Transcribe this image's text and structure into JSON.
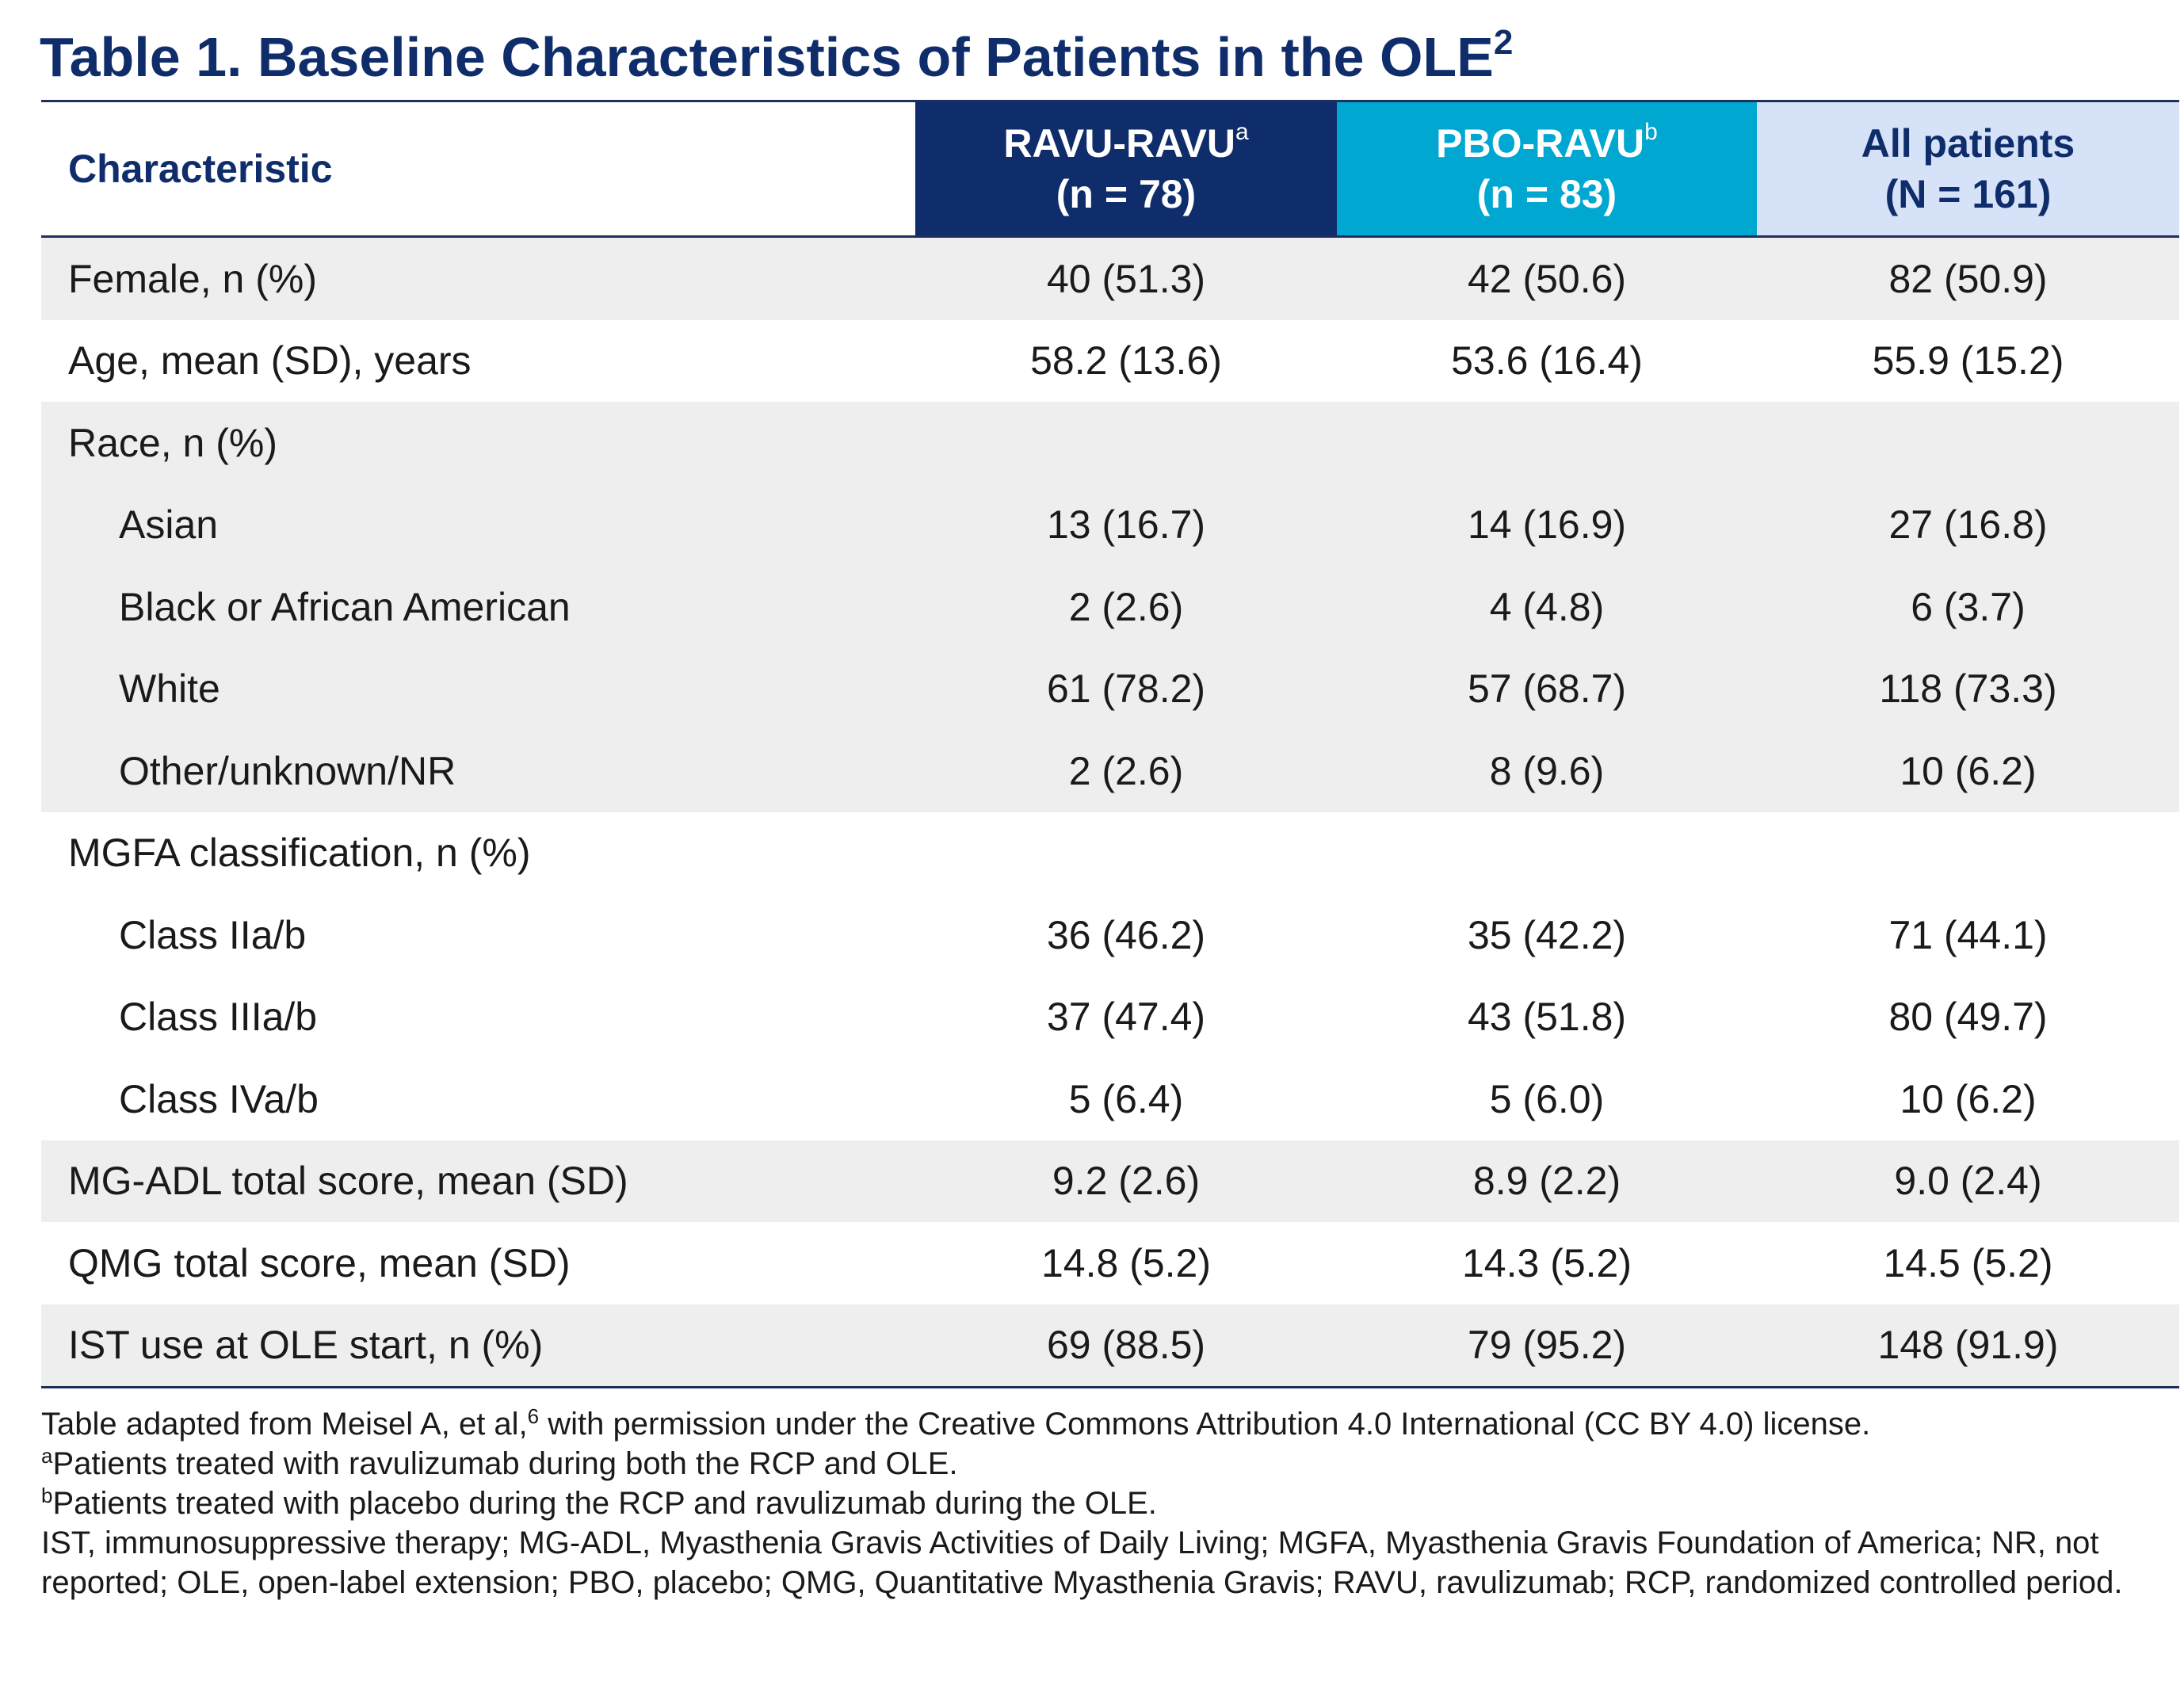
{
  "title": {
    "text": "Table 1. Baseline Characteristics of Patients in the OLE",
    "superscript": "2"
  },
  "columns": [
    {
      "label": "Characteristic",
      "sup": "",
      "sublabel": ""
    },
    {
      "label": "RAVU-RAVU",
      "sup": "a",
      "sublabel": "(n = 78)"
    },
    {
      "label": "PBO-RAVU",
      "sup": "b",
      "sublabel": "(n = 83)"
    },
    {
      "label": "All patients",
      "sup": "",
      "sublabel": "(N = 161)"
    }
  ],
  "rows": [
    {
      "label": "Female, n (%)",
      "values": [
        "40 (51.3)",
        "42 (50.6)",
        "82 (50.9)"
      ]
    },
    {
      "label": "Age, mean (SD), years",
      "values": [
        "58.2 (13.6)",
        "53.6 (16.4)",
        "55.9 (15.2)"
      ]
    },
    {
      "label": "Race, n (%)",
      "values": [
        "",
        "",
        ""
      ]
    },
    {
      "label": "Asian",
      "values": [
        "13 (16.7)",
        "14 (16.9)",
        "27 (16.8)"
      ]
    },
    {
      "label": "Black or African American",
      "values": [
        "2 (2.6)",
        "4 (4.8)",
        "6 (3.7)"
      ]
    },
    {
      "label": "White",
      "values": [
        "61 (78.2)",
        "57 (68.7)",
        "118 (73.3)"
      ]
    },
    {
      "label": "Other/unknown/NR",
      "values": [
        "2 (2.6)",
        "8 (9.6)",
        "10 (6.2)"
      ]
    },
    {
      "label": "MGFA classification, n (%)",
      "values": [
        "",
        "",
        ""
      ]
    },
    {
      "label": "Class IIa/b",
      "values": [
        "36 (46.2)",
        "35 (42.2)",
        "71 (44.1)"
      ]
    },
    {
      "label": "Class IIIa/b",
      "values": [
        "37 (47.4)",
        "43 (51.8)",
        "80 (49.7)"
      ]
    },
    {
      "label": "Class IVa/b",
      "values": [
        "5 (6.4)",
        "5 (6.0)",
        "10 (6.2)"
      ]
    },
    {
      "label": "MG-ADL total score, mean (SD)",
      "values": [
        "9.2 (2.6)",
        "8.9 (2.2)",
        "9.0 (2.4)"
      ]
    },
    {
      "label": "QMG total score, mean (SD)",
      "values": [
        "14.8 (5.2)",
        "14.3 (5.2)",
        "14.5 (5.2)"
      ]
    },
    {
      "label": "IST use at OLE start, n (%)",
      "values": [
        "69 (88.5)",
        "79 (95.2)",
        "148 (91.9)"
      ]
    }
  ],
  "footnotes": {
    "source_before": "Table adapted from Meisel A, et al,",
    "source_sup": "6",
    "source_after": " with permission under the Creative Commons Attribution 4.0 International (CC BY 4.0) license.",
    "note_a_marker": "a",
    "note_a": "Patients treated with ravulizumab during both the RCP and OLE.",
    "note_b_marker": "b",
    "note_b": "Patients treated with placebo during the RCP and ravulizumab during the OLE.",
    "abbreviations": "IST, immunosuppressive therapy; MG-ADL, Myasthenia Gravis Activities of Daily Living; MGFA, Myasthenia Gravis Foundation of America; NR, not reported; OLE, open-label extension; PBO, placebo; QMG, Quantitative Myasthenia Gravis; RAVU, ravulizumab; RCP, randomized controlled period."
  },
  "colors": {
    "title": "#0f2d6b",
    "ravu_header_bg": "#0f2d6b",
    "pbo_header_bg": "#00a7d0",
    "all_header_bg": "#d6e2f7",
    "row_shade": "#eeeeee",
    "rule": "#1f2f5c"
  }
}
